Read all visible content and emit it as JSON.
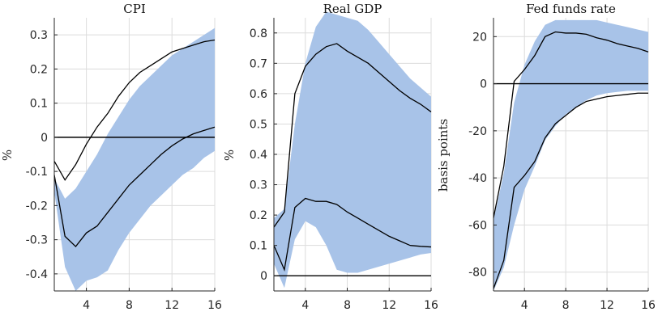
{
  "chart_data": [
    {
      "type": "area",
      "title": "CPI",
      "ylabel": "%",
      "xlim": [
        1,
        16
      ],
      "ylim": [
        -0.45,
        0.35
      ],
      "xticks": [
        4,
        8,
        12,
        16
      ],
      "yticks": [
        -0.4,
        -0.3,
        -0.2,
        -0.1,
        0,
        0.1,
        0.2,
        0.3
      ],
      "ytick_labels": [
        "-0.4",
        "-0.3",
        "-0.2",
        "-0.1",
        "0",
        "0.1",
        "0.2",
        "0.3"
      ],
      "grid": true,
      "zero_line": 0,
      "x": [
        1,
        2,
        3,
        4,
        5,
        6,
        7,
        8,
        9,
        10,
        11,
        12,
        13,
        14,
        15,
        16
      ],
      "band": {
        "color": "#a8c3e8",
        "upper": [
          -0.12,
          -0.18,
          -0.15,
          -0.1,
          -0.05,
          0.01,
          0.06,
          0.11,
          0.15,
          0.18,
          0.21,
          0.24,
          0.26,
          0.28,
          0.3,
          0.32
        ],
        "lower": [
          -0.16,
          -0.38,
          -0.45,
          -0.42,
          -0.41,
          -0.39,
          -0.33,
          -0.28,
          -0.24,
          -0.2,
          -0.17,
          -0.14,
          -0.11,
          -0.09,
          -0.06,
          -0.04
        ]
      },
      "series": [
        {
          "values": [
            -0.07,
            -0.125,
            -0.08,
            -0.02,
            0.03,
            0.07,
            0.12,
            0.16,
            0.19,
            0.21,
            0.23,
            0.25,
            0.26,
            0.27,
            0.28,
            0.285
          ]
        },
        {
          "values": [
            -0.11,
            -0.29,
            -0.32,
            -0.28,
            -0.26,
            -0.22,
            -0.18,
            -0.14,
            -0.11,
            -0.08,
            -0.05,
            -0.025,
            -0.005,
            0.01,
            0.02,
            0.03
          ]
        }
      ]
    },
    {
      "type": "area",
      "title": "Real GDP",
      "ylabel": "%",
      "xlim": [
        1,
        16
      ],
      "ylim": [
        -0.05,
        0.85
      ],
      "xticks": [
        4,
        8,
        12,
        16
      ],
      "yticks": [
        0,
        0.1,
        0.2,
        0.3,
        0.4,
        0.5,
        0.6,
        0.7,
        0.8
      ],
      "ytick_labels": [
        "0",
        "0.1",
        "0.2",
        "0.3",
        "0.4",
        "0.5",
        "0.6",
        "0.7",
        "0.8"
      ],
      "grid": true,
      "zero_line": 0,
      "x": [
        1,
        2,
        3,
        4,
        5,
        6,
        7,
        8,
        9,
        10,
        11,
        12,
        13,
        14,
        15,
        16
      ],
      "band": {
        "color": "#a8c3e8",
        "upper": [
          0.19,
          0.22,
          0.5,
          0.7,
          0.82,
          0.87,
          0.86,
          0.85,
          0.84,
          0.81,
          0.77,
          0.73,
          0.69,
          0.65,
          0.62,
          0.59
        ],
        "lower": [
          0.04,
          -0.04,
          0.12,
          0.18,
          0.16,
          0.1,
          0.02,
          0.01,
          0.01,
          0.02,
          0.03,
          0.04,
          0.05,
          0.06,
          0.07,
          0.075
        ]
      },
      "series": [
        {
          "values": [
            0.16,
            0.21,
            0.6,
            0.69,
            0.73,
            0.755,
            0.765,
            0.74,
            0.72,
            0.7,
            0.67,
            0.64,
            0.61,
            0.585,
            0.565,
            0.54
          ]
        },
        {
          "values": [
            0.1,
            0.02,
            0.225,
            0.255,
            0.245,
            0.245,
            0.235,
            0.21,
            0.19,
            0.17,
            0.15,
            0.13,
            0.115,
            0.1,
            0.097,
            0.095
          ]
        }
      ]
    },
    {
      "type": "area",
      "title": "Fed funds rate",
      "ylabel": "basis points",
      "xlim": [
        1,
        16
      ],
      "ylim": [
        -88,
        28
      ],
      "xticks": [
        4,
        8,
        12,
        16
      ],
      "yticks": [
        -80,
        -60,
        -40,
        -20,
        0,
        20
      ],
      "ytick_labels": [
        "-80",
        "-60",
        "-40",
        "-20",
        "0",
        "20"
      ],
      "grid": true,
      "zero_line": 0,
      "x": [
        1,
        2,
        3,
        4,
        5,
        6,
        7,
        8,
        9,
        10,
        11,
        12,
        13,
        14,
        15,
        16
      ],
      "band": {
        "color": "#a8c3e8",
        "upper": [
          -58,
          -38,
          -8,
          8,
          18,
          25,
          27,
          27,
          27,
          27,
          27,
          26,
          25,
          24,
          23,
          22
        ],
        "lower": [
          -88,
          -78,
          -60,
          -45,
          -35,
          -24,
          -18,
          -13,
          -10,
          -7,
          -5,
          -4,
          -3.5,
          -3,
          -3,
          -3
        ]
      },
      "series": [
        {
          "values": [
            -57,
            -35,
            1,
            6,
            12,
            20,
            22,
            21.5,
            21.5,
            21,
            19.5,
            18.5,
            17,
            16,
            15,
            13.5
          ]
        },
        {
          "values": [
            -87,
            -75,
            -44,
            -39,
            -33,
            -23,
            -17,
            -13.5,
            -10,
            -7.5,
            -6.5,
            -5.5,
            -5,
            -4.5,
            -4,
            -4
          ]
        }
      ]
    }
  ]
}
